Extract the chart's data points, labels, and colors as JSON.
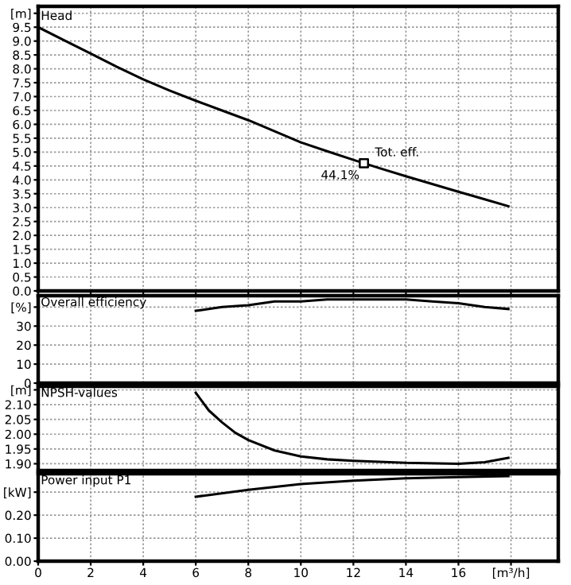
{
  "chart_data": [
    {
      "type": "line",
      "xlim": [
        0,
        19.8
      ],
      "xticks": [
        0,
        2,
        4,
        6,
        8,
        10,
        12,
        14,
        16,
        18
      ],
      "ylim": [
        0,
        10.25
      ],
      "yticks": [
        {
          "value": 0.0,
          "label": "0.0"
        },
        {
          "value": 0.5,
          "label": "0.5"
        },
        {
          "value": 1.0,
          "label": "1.0"
        },
        {
          "value": 1.5,
          "label": "1.5"
        },
        {
          "value": 2.0,
          "label": "2.0"
        },
        {
          "value": 2.5,
          "label": "2.5"
        },
        {
          "value": 3.0,
          "label": "3.0"
        },
        {
          "value": 3.5,
          "label": "3.5"
        },
        {
          "value": 4.0,
          "label": "4.0"
        },
        {
          "value": 4.5,
          "label": "4.5"
        },
        {
          "value": 5.0,
          "label": "5.0"
        },
        {
          "value": 5.5,
          "label": "5.5"
        },
        {
          "value": 6.0,
          "label": "6.0"
        },
        {
          "value": 6.5,
          "label": "6.5"
        },
        {
          "value": 7.0,
          "label": "7.0"
        },
        {
          "value": 7.5,
          "label": "7.5"
        },
        {
          "value": 8.0,
          "label": "8.0"
        },
        {
          "value": 8.5,
          "label": "8.5"
        },
        {
          "value": 9.0,
          "label": "9.0"
        },
        {
          "value": 9.5,
          "label": "9.5"
        },
        {
          "value": 10,
          "label": "[m]"
        }
      ],
      "grid": true,
      "tick_labels": "y",
      "legend": false,
      "series": [
        {
          "color": "#000000",
          "marker": "none",
          "x": [
            0,
            1,
            2,
            3,
            4,
            5,
            6,
            7,
            8,
            9,
            10,
            11,
            12,
            13,
            14,
            15,
            16,
            17,
            17.9
          ],
          "values": [
            9.5,
            9.02,
            8.55,
            8.07,
            7.62,
            7.22,
            6.85,
            6.5,
            6.15,
            5.75,
            5.35,
            5.03,
            4.72,
            4.42,
            4.13,
            3.85,
            3.57,
            3.3,
            3.05
          ]
        },
        {
          "type": "scatter",
          "color": "#000000",
          "marker": "square",
          "x": [
            12.4
          ],
          "values": [
            4.6
          ]
        }
      ],
      "annotations": [
        "Head",
        {
          "text": "Tot. eff.",
          "x": 12.4,
          "y": 4.6
        },
        {
          "text": "44.1%",
          "x": 12.4,
          "y": 4.6
        }
      ]
    },
    {
      "type": "line",
      "xlim": [
        0,
        19.8
      ],
      "xticks": [
        0,
        2,
        4,
        6,
        8,
        10,
        12,
        14,
        16,
        18
      ],
      "ylim": [
        0,
        46
      ],
      "yticks": [
        0,
        10,
        20,
        30,
        {
          "value": 40,
          "label": "[%]"
        }
      ],
      "grid": true,
      "tick_labels": "y",
      "legend": false,
      "series": [
        {
          "color": "#000000",
          "marker": "none",
          "x": [
            6,
            7,
            8,
            9,
            10,
            11,
            12,
            13,
            14,
            15,
            16,
            17,
            17.9
          ],
          "values": [
            38,
            40,
            41,
            43,
            43,
            44,
            44,
            44,
            44,
            43,
            42,
            40,
            39
          ]
        }
      ],
      "annotations": [
        "Overall efficiency"
      ]
    },
    {
      "type": "line",
      "xlim": [
        0,
        19.8
      ],
      "xticks": [
        0,
        2,
        4,
        6,
        8,
        10,
        12,
        14,
        16,
        18
      ],
      "ylim": [
        1.877,
        2.162
      ],
      "yticks": [
        {
          "value": 1.9,
          "label": "1.90"
        },
        {
          "value": 1.95,
          "label": "1.95"
        },
        {
          "value": 2.0,
          "label": "2.00"
        },
        {
          "value": 2.05,
          "label": "2.05"
        },
        {
          "value": 2.1,
          "label": "2.10"
        },
        {
          "value": 2.15,
          "label": "[m]"
        }
      ],
      "grid": true,
      "tick_labels": "y",
      "legend": false,
      "series": [
        {
          "color": "#000000",
          "marker": "none",
          "x": [
            6,
            6.5,
            7,
            7.5,
            8,
            9,
            10,
            11,
            12,
            14,
            16,
            17,
            17.9
          ],
          "values": [
            2.14,
            2.08,
            2.04,
            2.005,
            1.98,
            1.945,
            1.925,
            1.915,
            1.91,
            1.903,
            1.9,
            1.905,
            1.92
          ]
        }
      ],
      "annotations": [
        "NPSH-values"
      ]
    },
    {
      "type": "line",
      "xlim": [
        0,
        19.8
      ],
      "xticks": [
        0,
        2,
        4,
        6,
        8,
        10,
        12,
        14,
        16,
        {
          "value": 18,
          "label": "[m³/h]"
        }
      ],
      "ylim": [
        0,
        0.38
      ],
      "yticks": [
        {
          "value": 0.0,
          "label": "0.00"
        },
        {
          "value": 0.1,
          "label": "0.10"
        },
        {
          "value": 0.2,
          "label": "0.20"
        },
        {
          "value": 0.3,
          "label": "[kW]"
        }
      ],
      "grid": true,
      "legend": false,
      "series": [
        {
          "color": "#000000",
          "marker": "none",
          "x": [
            6,
            8,
            10,
            12,
            14,
            16,
            17.9
          ],
          "values": [
            0.28,
            0.31,
            0.335,
            0.35,
            0.36,
            0.365,
            0.37
          ]
        }
      ],
      "annotations": [
        "Power input P1"
      ]
    }
  ]
}
